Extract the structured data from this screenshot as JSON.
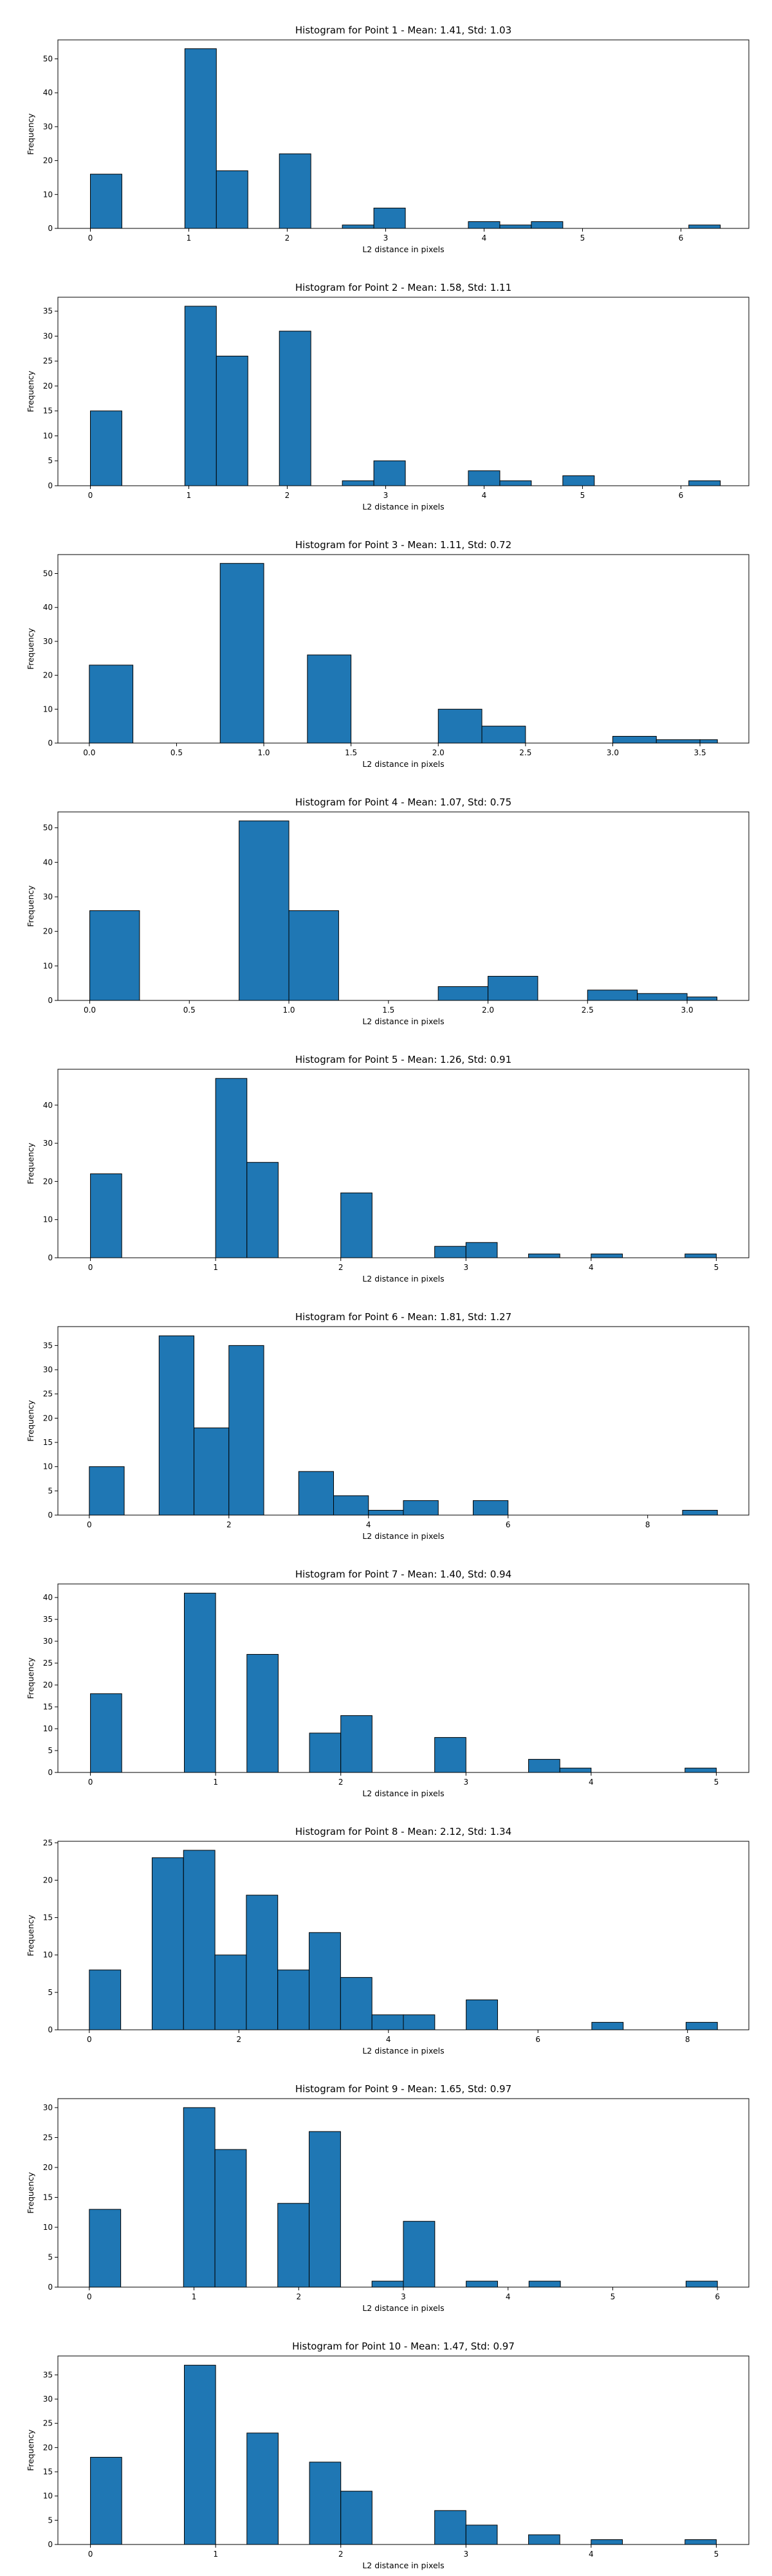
{
  "chart_data": [
    {
      "type": "bar",
      "title": "Histogram for Point 1 - Mean: 1.41, Std: 1.03",
      "xlabel": "L2 distance in pixels",
      "ylabel": "Frequency",
      "xlim": [
        -0.33,
        6.69
      ],
      "ylim": [
        0,
        55.6
      ],
      "xticks": [
        0,
        1,
        2,
        3,
        4,
        5,
        6
      ],
      "yticks": [
        0,
        10,
        20,
        30,
        40,
        50
      ],
      "bin_edges": [
        0.0,
        0.32,
        0.64,
        0.96,
        1.28,
        1.6,
        1.92,
        2.24,
        2.56,
        2.88,
        3.2,
        3.52,
        3.84,
        4.16,
        4.48,
        4.8,
        5.12,
        5.44,
        5.76,
        6.08,
        6.4
      ],
      "values": [
        16,
        0,
        0,
        53,
        17,
        0,
        22,
        0,
        1,
        6,
        0,
        0,
        2,
        1,
        2,
        0,
        0,
        0,
        0,
        1
      ],
      "bar_color": "#1f77b4",
      "grid": false
    },
    {
      "type": "bar",
      "title": "Histogram for Point 2 - Mean: 1.58, Std: 1.11",
      "xlabel": "L2 distance in pixels",
      "ylabel": "Frequency",
      "xlim": [
        -0.33,
        6.69
      ],
      "ylim": [
        0,
        37.8
      ],
      "xticks": [
        0,
        1,
        2,
        3,
        4,
        5,
        6
      ],
      "yticks": [
        0,
        5,
        10,
        15,
        20,
        25,
        30,
        35
      ],
      "bin_edges": [
        0.0,
        0.32,
        0.64,
        0.96,
        1.28,
        1.6,
        1.92,
        2.24,
        2.56,
        2.88,
        3.2,
        3.52,
        3.84,
        4.16,
        4.48,
        4.8,
        5.12,
        5.44,
        5.76,
        6.08,
        6.4
      ],
      "values": [
        15,
        0,
        0,
        36,
        26,
        0,
        31,
        0,
        1,
        5,
        0,
        0,
        3,
        1,
        0,
        2,
        0,
        0,
        0,
        1
      ],
      "bar_color": "#1f77b4",
      "grid": false
    },
    {
      "type": "bar",
      "title": "Histogram for Point 3 - Mean: 1.11, Std: 0.72",
      "xlabel": "L2 distance in pixels",
      "ylabel": "Frequency",
      "xlim": [
        -0.18,
        3.78
      ],
      "ylim": [
        0,
        55.6
      ],
      "xticks": [
        0.0,
        0.5,
        1.0,
        1.5,
        2.0,
        2.5,
        3.0,
        3.5
      ],
      "xtick_labels": [
        "0.0",
        "0.5",
        "1.0",
        "1.5",
        "2.0",
        "2.5",
        "3.0",
        "3.5"
      ],
      "yticks": [
        0,
        10,
        20,
        30,
        40,
        50
      ],
      "bin_edges": [
        0.0,
        0.25,
        0.5,
        0.75,
        1.0,
        1.25,
        1.5,
        1.75,
        2.0,
        2.25,
        2.5,
        2.75,
        3.0,
        3.25,
        3.5,
        3.6
      ],
      "values": [
        23,
        0,
        0,
        53,
        0,
        26,
        0,
        0,
        10,
        5,
        0,
        0,
        2,
        1,
        1
      ],
      "bar_color": "#1f77b4",
      "grid": false
    },
    {
      "type": "bar",
      "title": "Histogram for Point 4 - Mean: 1.07, Std: 0.75",
      "xlabel": "L2 distance in pixels",
      "ylabel": "Frequency",
      "xlim": [
        -0.16,
        3.31
      ],
      "ylim": [
        0,
        54.6
      ],
      "xticks": [
        0.0,
        0.5,
        1.0,
        1.5,
        2.0,
        2.5,
        3.0
      ],
      "xtick_labels": [
        "0.0",
        "0.5",
        "1.0",
        "1.5",
        "2.0",
        "2.5",
        "3.0"
      ],
      "yticks": [
        0,
        10,
        20,
        30,
        40,
        50
      ],
      "bin_edges": [
        0.0,
        0.25,
        0.5,
        0.75,
        1.0,
        1.25,
        1.5,
        1.75,
        2.0,
        2.25,
        2.5,
        2.75,
        3.0,
        3.15
      ],
      "values": [
        26,
        0,
        0,
        52,
        26,
        0,
        0,
        4,
        7,
        0,
        3,
        2,
        1
      ],
      "bar_color": "#1f77b4",
      "grid": false
    },
    {
      "type": "bar",
      "title": "Histogram for Point 5 - Mean: 1.26, Std: 0.91",
      "xlabel": "L2 distance in pixels",
      "ylabel": "Frequency",
      "xlim": [
        -0.26,
        5.26
      ],
      "ylim": [
        0,
        49.4
      ],
      "xticks": [
        0,
        1,
        2,
        3,
        4,
        5
      ],
      "yticks": [
        0,
        10,
        20,
        30,
        40
      ],
      "bin_edges": [
        0.0,
        0.25,
        0.5,
        0.75,
        1.0,
        1.25,
        1.5,
        1.75,
        2.0,
        2.25,
        2.5,
        2.75,
        3.0,
        3.25,
        3.5,
        3.75,
        4.0,
        4.25,
        4.5,
        4.75,
        5.0
      ],
      "values": [
        22,
        0,
        0,
        0,
        47,
        25,
        0,
        0,
        17,
        0,
        0,
        3,
        4,
        0,
        1,
        0,
        1,
        0,
        0,
        1
      ],
      "bar_color": "#1f77b4",
      "grid": false
    },
    {
      "type": "bar",
      "title": "Histogram for Point 6 - Mean: 1.81, Std: 1.27",
      "xlabel": "L2 distance in pixels",
      "ylabel": "Frequency",
      "xlim": [
        -0.45,
        9.45
      ],
      "ylim": [
        0,
        38.9
      ],
      "xticks": [
        0,
        2,
        4,
        6,
        8
      ],
      "yticks": [
        0,
        5,
        10,
        15,
        20,
        25,
        30,
        35
      ],
      "bin_edges": [
        0.0,
        0.5,
        1.0,
        1.5,
        2.0,
        2.5,
        3.0,
        3.5,
        4.0,
        4.5,
        5.0,
        5.5,
        6.0,
        6.5,
        7.0,
        7.5,
        8.0,
        8.5,
        9.0
      ],
      "values": [
        10,
        0,
        37,
        18,
        35,
        0,
        9,
        4,
        1,
        3,
        0,
        3,
        0,
        0,
        0,
        0,
        0,
        1
      ],
      "bar_color": "#1f77b4",
      "grid": false
    },
    {
      "type": "bar",
      "title": "Histogram for Point 7 - Mean: 1.40, Std: 0.94",
      "xlabel": "L2 distance in pixels",
      "ylabel": "Frequency",
      "xlim": [
        -0.26,
        5.26
      ],
      "ylim": [
        0,
        43.1
      ],
      "xticks": [
        0,
        1,
        2,
        3,
        4,
        5
      ],
      "yticks": [
        0,
        5,
        10,
        15,
        20,
        25,
        30,
        35,
        40
      ],
      "bin_edges": [
        0.0,
        0.25,
        0.5,
        0.75,
        1.0,
        1.25,
        1.5,
        1.75,
        2.0,
        2.25,
        2.5,
        2.75,
        3.0,
        3.25,
        3.5,
        3.75,
        4.0,
        4.25,
        4.5,
        4.75,
        5.0
      ],
      "values": [
        18,
        0,
        0,
        41,
        0,
        27,
        0,
        9,
        13,
        0,
        0,
        8,
        0,
        0,
        3,
        1,
        0,
        0,
        0,
        1
      ],
      "bar_color": "#1f77b4",
      "grid": false
    },
    {
      "type": "bar",
      "title": "Histogram for Point 8 - Mean: 2.12, Std: 1.34",
      "xlabel": "L2 distance in pixels",
      "ylabel": "Frequency",
      "xlim": [
        -0.42,
        8.82
      ],
      "ylim": [
        0,
        25.2
      ],
      "xticks": [
        0,
        2,
        4,
        6,
        8
      ],
      "yticks": [
        0,
        5,
        10,
        15,
        20,
        25
      ],
      "bin_edges": [
        0.0,
        0.42,
        0.84,
        1.26,
        1.68,
        2.1,
        2.52,
        2.94,
        3.36,
        3.78,
        4.2,
        4.62,
        5.04,
        5.46,
        5.88,
        6.3,
        6.72,
        7.14,
        7.56,
        7.98,
        8.4
      ],
      "values": [
        8,
        0,
        23,
        24,
        10,
        18,
        8,
        13,
        7,
        2,
        2,
        0,
        4,
        0,
        0,
        0,
        1,
        0,
        0,
        1
      ],
      "bar_color": "#1f77b4",
      "grid": false
    },
    {
      "type": "bar",
      "title": "Histogram for Point 9 - Mean: 1.65, Std: 0.97",
      "xlabel": "L2 distance in pixels",
      "ylabel": "Frequency",
      "xlim": [
        -0.3,
        6.3
      ],
      "ylim": [
        0,
        31.5
      ],
      "xticks": [
        0,
        1,
        2,
        3,
        4,
        5,
        6
      ],
      "yticks": [
        0,
        5,
        10,
        15,
        20,
        25,
        30
      ],
      "bin_edges": [
        0.0,
        0.3,
        0.6,
        0.9,
        1.2,
        1.5,
        1.8,
        2.1,
        2.4,
        2.7,
        3.0,
        3.3,
        3.6,
        3.9,
        4.2,
        4.5,
        4.8,
        5.1,
        5.4,
        5.7,
        6.0
      ],
      "values": [
        13,
        0,
        0,
        30,
        23,
        0,
        14,
        26,
        0,
        1,
        11,
        0,
        1,
        0,
        1,
        0,
        0,
        0,
        0,
        1
      ],
      "bar_color": "#1f77b4",
      "grid": false
    },
    {
      "type": "bar",
      "title": "Histogram for Point 10 - Mean: 1.47, Std: 0.97",
      "xlabel": "L2 distance in pixels",
      "ylabel": "Frequency",
      "xlim": [
        -0.26,
        5.26
      ],
      "ylim": [
        0,
        38.9
      ],
      "xticks": [
        0,
        1,
        2,
        3,
        4,
        5
      ],
      "yticks": [
        0,
        5,
        10,
        15,
        20,
        25,
        30,
        35
      ],
      "bin_edges": [
        0.0,
        0.25,
        0.5,
        0.75,
        1.0,
        1.25,
        1.5,
        1.75,
        2.0,
        2.25,
        2.5,
        2.75,
        3.0,
        3.25,
        3.5,
        3.75,
        4.0,
        4.25,
        4.5,
        4.75,
        5.0
      ],
      "values": [
        18,
        0,
        0,
        37,
        0,
        23,
        0,
        17,
        11,
        0,
        0,
        7,
        4,
        0,
        2,
        0,
        1,
        0,
        0,
        1
      ],
      "bar_color": "#1f77b4",
      "grid": false
    }
  ]
}
